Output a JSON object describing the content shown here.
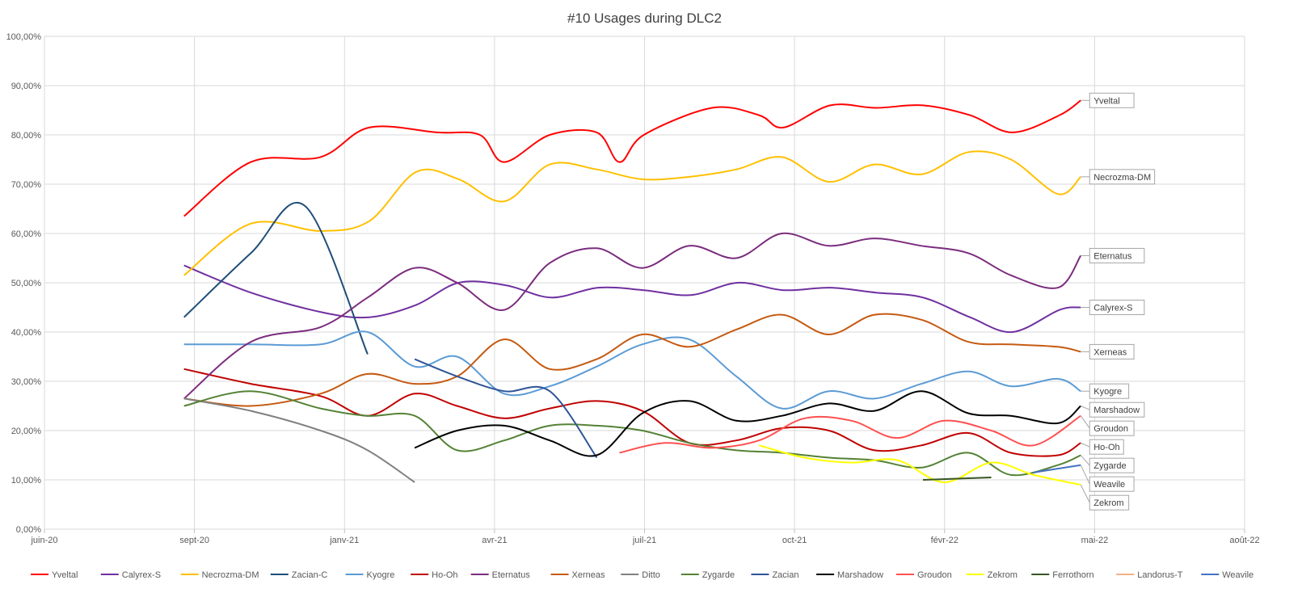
{
  "chart_data": {
    "type": "line",
    "title": "#10 Usages during DLC2",
    "x_ticks": [
      "juin-20",
      "sept-20",
      "janv-21",
      "avr-21",
      "juil-21",
      "oct-21",
      "févr-22",
      "mai-22",
      "août-22"
    ],
    "y_ticks": [
      "0,00%",
      "10,00%",
      "20,00%",
      "30,00%",
      "40,00%",
      "50,00%",
      "60,00%",
      "70,00%",
      "80,00%",
      "90,00%",
      "100,00%"
    ],
    "xlim": [
      "2020-06-01",
      "2022-08-01"
    ],
    "ylim": [
      0,
      100
    ],
    "grid": true,
    "legend_position": "bottom",
    "series": [
      {
        "name": "Yveltal",
        "color": "#ff0000",
        "label": "Yveltal",
        "x": [
          "2020-09-01",
          "2020-10-15",
          "2020-11-30",
          "2021-01-01",
          "2021-02-15",
          "2021-03-15",
          "2021-03-31",
          "2021-04-30",
          "2021-05-31",
          "2021-06-15",
          "2021-07-01",
          "2021-08-15",
          "2021-09-15",
          "2021-10-01",
          "2021-11-01",
          "2021-12-01",
          "2022-01-01",
          "2022-02-01",
          "2022-03-01",
          "2022-04-01",
          "2022-04-15"
        ],
        "y": [
          63.5,
          74.5,
          75.5,
          81.5,
          80.5,
          80,
          74.5,
          80,
          80.5,
          74.5,
          80,
          85.5,
          84,
          81.5,
          86,
          85.5,
          86,
          84,
          80.5,
          84,
          87
        ]
      },
      {
        "name": "Calyrex-S",
        "color": "#7030a0",
        "label": "Calyrex-S",
        "x": [
          "2020-09-01",
          "2020-10-15",
          "2020-12-01",
          "2021-01-01",
          "2021-02-01",
          "2021-03-01",
          "2021-04-01",
          "2021-05-01",
          "2021-06-01",
          "2021-07-01",
          "2021-08-01",
          "2021-09-01",
          "2021-10-01",
          "2021-11-01",
          "2021-12-01",
          "2022-01-01",
          "2022-02-01",
          "2022-03-01",
          "2022-04-01",
          "2022-04-15"
        ],
        "y": [
          53.5,
          48,
          44,
          43,
          45.5,
          50,
          49.5,
          47,
          49,
          48.5,
          47.5,
          50,
          48.5,
          49,
          48,
          47,
          43,
          40,
          44.5,
          45
        ]
      },
      {
        "name": "Necrozma-DM",
        "color": "#ffc000",
        "label": "Necrozma-DM",
        "x": [
          "2020-09-01",
          "2020-10-15",
          "2020-11-30",
          "2021-01-01",
          "2021-02-01",
          "2021-03-01",
          "2021-03-31",
          "2021-04-30",
          "2021-05-31",
          "2021-06-30",
          "2021-07-31",
          "2021-08-31",
          "2021-09-30",
          "2021-10-31",
          "2021-11-30",
          "2021-12-31",
          "2022-01-31",
          "2022-02-28",
          "2022-03-31",
          "2022-04-15"
        ],
        "y": [
          51.5,
          62,
          60.5,
          62.5,
          72.5,
          71,
          66.5,
          74,
          73,
          71,
          71.5,
          73,
          75.5,
          70.5,
          74,
          72,
          76.5,
          75,
          68,
          71.5
        ]
      },
      {
        "name": "Zacian-C",
        "color": "#1f4e79",
        "label": "",
        "x": [
          "2020-09-01",
          "2020-10-15",
          "2020-11-20",
          "2020-12-31"
        ],
        "y": [
          43,
          56,
          65.5,
          35.5
        ]
      },
      {
        "name": "Kyogre",
        "color": "#5b9bd5",
        "label": "Kyogre",
        "x": [
          "2020-09-01",
          "2020-10-15",
          "2020-11-30",
          "2020-12-31",
          "2021-01-31",
          "2021-02-28",
          "2021-03-31",
          "2021-04-30",
          "2021-05-31",
          "2021-06-30",
          "2021-07-31",
          "2021-08-31",
          "2021-09-30",
          "2021-10-31",
          "2021-11-30",
          "2021-12-31",
          "2022-01-31",
          "2022-02-28",
          "2022-03-31",
          "2022-04-15"
        ],
        "y": [
          37.5,
          37.5,
          37.5,
          40,
          33,
          35,
          27.5,
          29,
          33,
          37.5,
          38.5,
          31,
          24.5,
          28,
          26.5,
          29.5,
          32,
          29,
          30.5,
          28
        ]
      },
      {
        "name": "Ho-Oh",
        "color": "#c00000",
        "label": "Ho-Oh",
        "x": [
          "2020-09-01",
          "2020-10-15",
          "2020-11-30",
          "2020-12-31",
          "2021-01-31",
          "2021-02-28",
          "2021-03-31",
          "2021-04-30",
          "2021-05-31",
          "2021-06-30",
          "2021-07-31",
          "2021-08-31",
          "2021-09-30",
          "2021-10-31",
          "2021-11-30",
          "2021-12-31",
          "2022-01-31",
          "2022-02-28",
          "2022-03-31",
          "2022-04-15"
        ],
        "y": [
          32.5,
          29.5,
          27,
          23,
          27.5,
          25,
          22.5,
          24.5,
          26,
          24,
          17.5,
          18,
          20.5,
          20,
          16,
          17,
          19.5,
          15.5,
          15,
          17.5
        ]
      },
      {
        "name": "Eternatus",
        "color": "#7b2c7e",
        "label": "Eternatus",
        "x": [
          "2020-09-01",
          "2020-10-15",
          "2020-11-30",
          "2020-12-31",
          "2021-01-31",
          "2021-02-28",
          "2021-03-31",
          "2021-04-30",
          "2021-05-31",
          "2021-06-30",
          "2021-07-31",
          "2021-08-31",
          "2021-09-30",
          "2021-10-31",
          "2021-11-30",
          "2021-12-31",
          "2022-01-31",
          "2022-02-28",
          "2022-03-31",
          "2022-04-15"
        ],
        "y": [
          26.5,
          38,
          41,
          47,
          53,
          50,
          44.5,
          54,
          57,
          53,
          57.5,
          55,
          60,
          57.5,
          59,
          57.5,
          56,
          51.5,
          49,
          55.5
        ]
      },
      {
        "name": "Xerneas",
        "color": "#c55a11",
        "label": "Xerneas",
        "x": [
          "2020-09-01",
          "2020-10-15",
          "2020-11-30",
          "2020-12-31",
          "2021-01-31",
          "2021-02-28",
          "2021-03-31",
          "2021-04-30",
          "2021-05-31",
          "2021-06-30",
          "2021-07-31",
          "2021-08-31",
          "2021-09-30",
          "2021-10-31",
          "2021-11-30",
          "2021-12-31",
          "2022-01-31",
          "2022-02-28",
          "2022-03-31",
          "2022-04-15"
        ],
        "y": [
          26.5,
          25,
          27.5,
          31.5,
          29.5,
          31,
          38.5,
          32.5,
          34.5,
          39.5,
          37,
          40.5,
          43.5,
          39.5,
          43.5,
          42.5,
          38,
          37.5,
          37,
          36
        ]
      },
      {
        "name": "Ditto",
        "color": "#808080",
        "label": "",
        "x": [
          "2020-09-01",
          "2020-10-15",
          "2020-11-30",
          "2020-12-31",
          "2021-01-31"
        ],
        "y": [
          26.5,
          24,
          20,
          16,
          9.5
        ]
      },
      {
        "name": "Zygarde",
        "color": "#548235",
        "label": "Zygarde",
        "x": [
          "2020-09-01",
          "2020-10-15",
          "2020-11-30",
          "2020-12-31",
          "2021-01-31",
          "2021-02-28",
          "2021-03-31",
          "2021-04-30",
          "2021-05-31",
          "2021-06-30",
          "2021-07-31",
          "2021-08-31",
          "2021-09-30",
          "2021-10-31",
          "2021-11-30",
          "2021-12-31",
          "2022-01-31",
          "2022-02-28",
          "2022-03-31",
          "2022-04-15"
        ],
        "y": [
          25,
          28,
          24.5,
          23,
          23,
          16,
          18,
          21,
          21,
          20,
          17.5,
          16,
          15.5,
          14.5,
          14,
          12.5,
          15.5,
          11,
          13,
          15
        ]
      },
      {
        "name": "Zacian",
        "color": "#2f5597",
        "label": "",
        "x": [
          "2021-01-31",
          "2021-02-28",
          "2021-03-31",
          "2021-04-30",
          "2021-05-31"
        ],
        "y": [
          34.5,
          31,
          28,
          28,
          14.5
        ]
      },
      {
        "name": "Marshadow",
        "color": "#000000",
        "label": "Marshadow",
        "x": [
          "2021-01-31",
          "2021-02-28",
          "2021-03-31",
          "2021-04-30",
          "2021-05-31",
          "2021-06-30",
          "2021-07-31",
          "2021-08-31",
          "2021-09-30",
          "2021-10-31",
          "2021-11-30",
          "2021-12-31",
          "2022-01-31",
          "2022-02-28",
          "2022-03-31",
          "2022-04-15"
        ],
        "y": [
          16.5,
          20,
          21,
          18,
          15,
          23.5,
          26,
          22,
          23,
          25.5,
          24,
          28,
          23.5,
          23,
          21.5,
          25
        ]
      },
      {
        "name": "Groudon",
        "color": "#ff5050",
        "label": "Groudon",
        "x": [
          "2021-06-15",
          "2021-07-15",
          "2021-08-15",
          "2021-09-15",
          "2021-10-15",
          "2021-11-15",
          "2021-12-15",
          "2022-01-15",
          "2022-02-15",
          "2022-03-15",
          "2022-04-15"
        ],
        "y": [
          15.5,
          17.5,
          16.5,
          18,
          22.5,
          22,
          18.5,
          22,
          20,
          17,
          23
        ]
      },
      {
        "name": "Zekrom",
        "color": "#ffff00",
        "label": "Zekrom",
        "x": [
          "2021-09-15",
          "2021-10-15",
          "2021-11-15",
          "2021-12-15",
          "2022-01-15",
          "2022-02-15",
          "2022-03-15",
          "2022-04-15"
        ],
        "y": [
          17,
          14.5,
          13.5,
          14,
          9.5,
          13.5,
          11,
          9
        ]
      },
      {
        "name": "Ferrothorn",
        "color": "#375623",
        "label": "",
        "x": [
          "2022-01-01",
          "2022-02-15"
        ],
        "y": [
          10,
          10.5
        ]
      },
      {
        "name": "Landorus-T",
        "color": "#f4b183",
        "label": "",
        "x": [],
        "y": []
      },
      {
        "name": "Weavile",
        "color": "#4472c4",
        "label": "Weavile",
        "x": [
          "2022-03-15",
          "2022-04-15"
        ],
        "y": [
          11.5,
          13
        ]
      }
    ]
  }
}
